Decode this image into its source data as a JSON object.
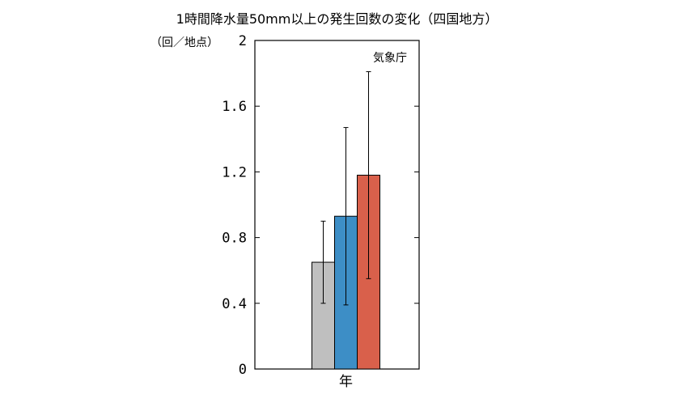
{
  "title": "1時間降水量50mm以上の発生回数の変化（四国地方）",
  "unit_label": "（回／地点）",
  "credit": "気象庁",
  "chart_data": {
    "type": "bar",
    "categories": [
      "年"
    ],
    "series": [
      {
        "values": [
          0.65
        ],
        "error_low": [
          0.4
        ],
        "error_high": [
          0.9
        ],
        "color": "#bfbfbf"
      },
      {
        "values": [
          0.93
        ],
        "error_low": [
          0.39
        ],
        "error_high": [
          1.47
        ],
        "color": "#3d8ec6"
      },
      {
        "values": [
          1.18
        ],
        "error_low": [
          0.55
        ],
        "error_high": [
          1.81
        ],
        "color": "#d9604b"
      }
    ],
    "y_ticks": [
      "0",
      "0.4",
      "0.8",
      "1.2",
      "1.6",
      "2"
    ],
    "ylim": [
      0,
      2
    ],
    "grid": false
  }
}
